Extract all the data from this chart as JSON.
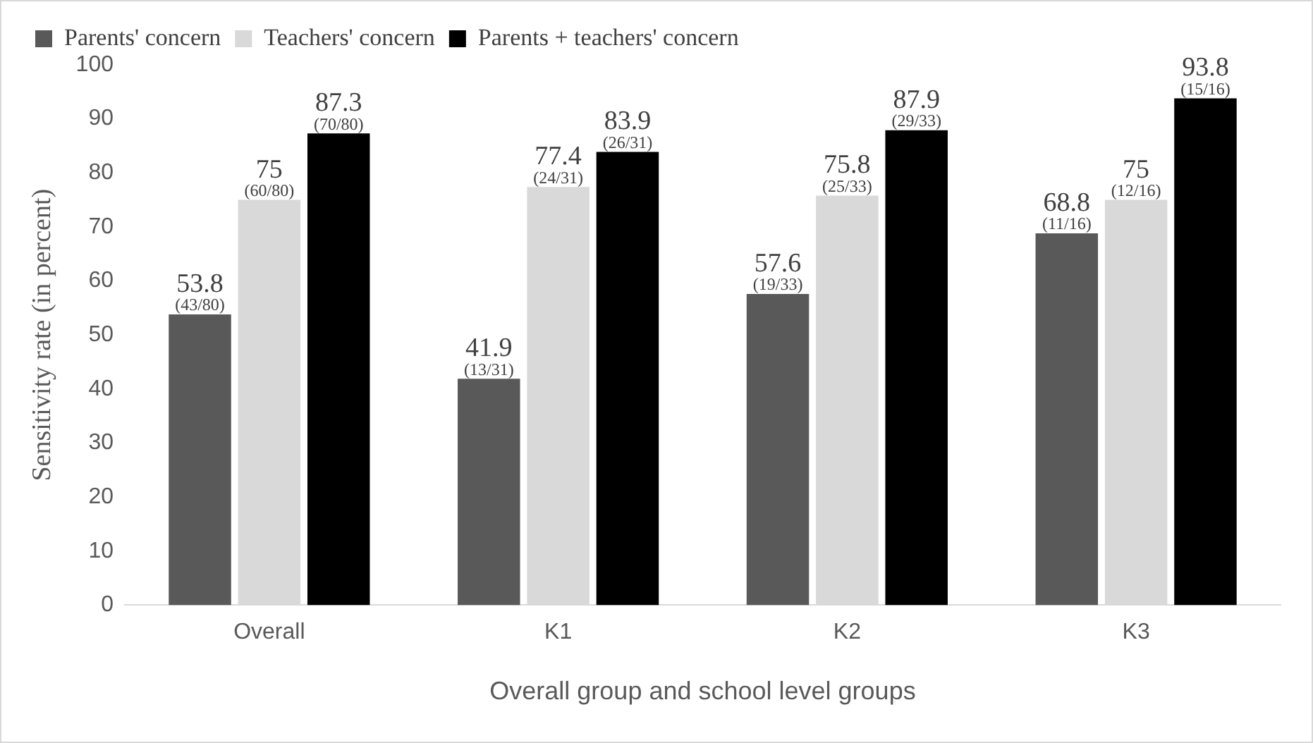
{
  "chart_data": {
    "type": "bar",
    "xlabel": "Overall group and school level groups",
    "ylabel": "Sensitivity rate (in percent)",
    "categories": [
      "Overall",
      "K1",
      "K2",
      "K3"
    ],
    "series": [
      {
        "name": "Parents' concern",
        "color": "#595959",
        "values": [
          53.8,
          41.9,
          57.6,
          68.8
        ],
        "value_labels": [
          "53.8\n(43/80)",
          "41.9\n(13/31)",
          "57.6\n(19/33)",
          "68.8\n(11/16)"
        ]
      },
      {
        "name": "Teachers' concern",
        "color": "#d9d9d9",
        "values": [
          75,
          77.4,
          75.8,
          75
        ],
        "value_labels": [
          "75\n(60/80)",
          "77.4\n(24/31)",
          "75.8\n(25/33)",
          "75\n(12/16)"
        ]
      },
      {
        "name": "Parents + teachers' concern",
        "color": "#000000",
        "values": [
          87.3,
          83.9,
          87.9,
          93.8
        ],
        "value_labels": [
          "87.3\n(70/80)",
          "83.9\n(26/31)",
          "87.9\n(29/33)",
          "93.8\n(15/16)"
        ]
      }
    ],
    "ylim": [
      0,
      100
    ],
    "yticks": [
      0,
      10,
      20,
      30,
      40,
      50,
      60,
      70,
      80,
      90,
      100
    ],
    "grid": false,
    "legend": "top left"
  }
}
